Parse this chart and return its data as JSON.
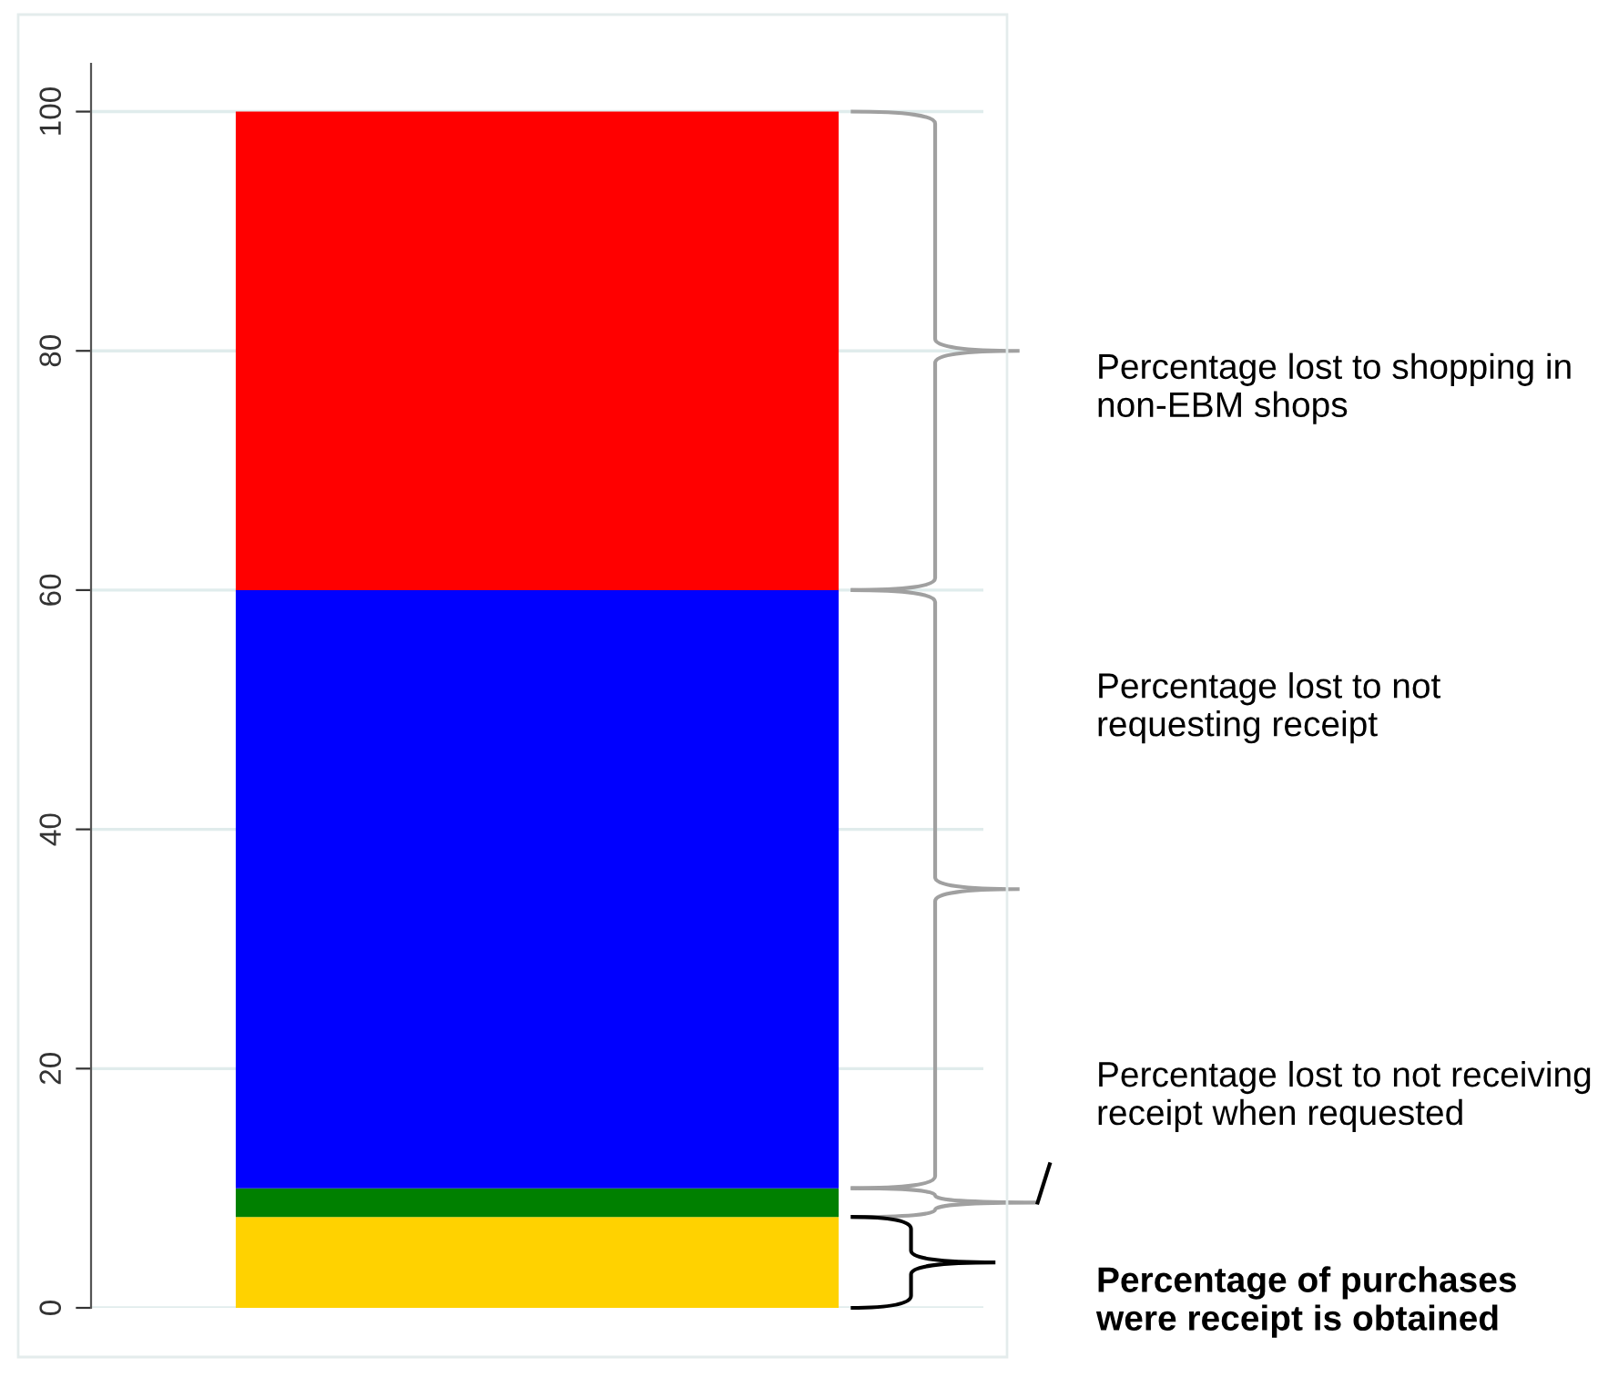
{
  "chart_data": {
    "type": "bar",
    "stacked": true,
    "categories": [
      null
    ],
    "series": [
      {
        "color": "#ffd200",
        "values": [
          7.6
        ]
      },
      {
        "color": "#008000",
        "values": [
          2.4
        ]
      },
      {
        "color": "#0000ff",
        "values": [
          50
        ]
      },
      {
        "color": "#ff0000",
        "values": [
          40
        ]
      }
    ],
    "ylim": [
      0,
      104
    ],
    "yticks": [
      0,
      20,
      40,
      60,
      80,
      100
    ],
    "grid": "y",
    "annotations": [
      "Percentage lost to shopping in non-EBM shops",
      "Percentage lost to not requesting receipt",
      "Percentage lost to not receiving receipt when requested",
      "Percentage of purchases were receipt is obtained"
    ]
  }
}
